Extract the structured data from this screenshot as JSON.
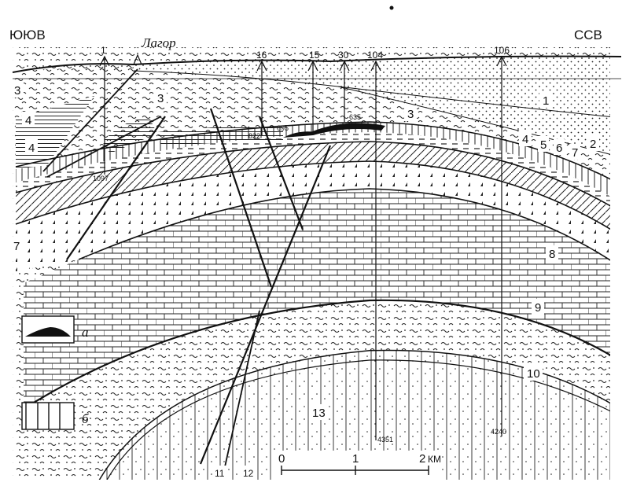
{
  "header": {
    "left_direction": "ЮЮВ",
    "right_direction": "ССВ",
    "locality": "Лагор"
  },
  "wells": [
    {
      "id": "1",
      "depth": "1097"
    },
    {
      "id": "16",
      "depth": "822"
    },
    {
      "id": "15",
      "depth": "695"
    },
    {
      "id": "30",
      "depth": "635"
    },
    {
      "id": "104",
      "depth": "4351"
    },
    {
      "id": "106",
      "depth": "4240"
    }
  ],
  "layer_numbers": [
    "1",
    "2",
    "3",
    "3",
    "3",
    "4",
    "4",
    "4",
    "5",
    "6",
    "7",
    "7",
    "8",
    "9",
    "10",
    "11",
    "12",
    "13"
  ],
  "legend": {
    "a_label": "а",
    "b_label": "б"
  },
  "scale": {
    "ticks": [
      "0",
      "1",
      "2"
    ],
    "unit": "КМ"
  },
  "colors": {
    "ink": "#111111",
    "paper": "#ffffff"
  }
}
